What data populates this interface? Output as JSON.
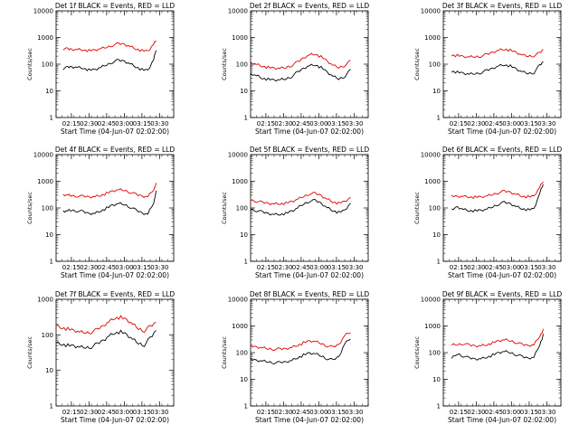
{
  "figure": {
    "panel_title_template": "Det {n}f BLACK = Events, RED = LLD",
    "xlabel": "Start Time (04-Jun-07 02:02:00)",
    "ylabel": "Counts/sec"
  },
  "chart_data": [
    {
      "panel": 1,
      "type": "line",
      "title": "Det 1f BLACK = Events, RED = LLD",
      "xlabel": "Start Time (04-Jun-07 02:02:00)",
      "ylabel": "Counts/sec",
      "ylog": true,
      "ylim": [
        1,
        10000
      ],
      "xlim": [
        "02:02",
        "03:42"
      ],
      "x_ticks": [
        "02:15",
        "02:30",
        "02:45",
        "03:00",
        "03:15",
        "03:30"
      ],
      "y_ticks": [
        "1",
        "10",
        "100",
        "1000",
        "10000"
      ],
      "x": [
        "02:08",
        "02:12",
        "02:15",
        "02:20",
        "02:25",
        "02:30",
        "02:35",
        "02:40",
        "02:45",
        "02:50",
        "02:55",
        "03:00",
        "03:05",
        "03:10",
        "03:15",
        "03:20",
        "03:25",
        "03:27"
      ],
      "series": [
        {
          "name": "LLD",
          "color": "#e00000",
          "values": [
            380,
            370,
            360,
            360,
            350,
            320,
            330,
            380,
            430,
            510,
            580,
            560,
            470,
            380,
            320,
            300,
            560,
            800
          ]
        },
        {
          "name": "Events",
          "color": "#000000",
          "values": [
            70,
            75,
            80,
            78,
            72,
            60,
            62,
            75,
            95,
            120,
            140,
            130,
            105,
            80,
            62,
            58,
            150,
            350
          ]
        }
      ],
      "grid": false
    },
    {
      "panel": 2,
      "type": "line",
      "title": "Det 2f BLACK = Events, RED = LLD",
      "xlabel": "Start Time (04-Jun-07 02:02:00)",
      "ylabel": "Counts/sec",
      "ylog": true,
      "ylim": [
        1,
        10000
      ],
      "xlim": [
        "02:02",
        "03:42"
      ],
      "x_ticks": [
        "02:15",
        "02:30",
        "02:45",
        "03:00",
        "03:15",
        "03:30"
      ],
      "y_ticks": [
        "1",
        "10",
        "100",
        "1000",
        "10000"
      ],
      "x": [
        "02:02",
        "02:07",
        "02:12",
        "02:17",
        "02:22",
        "02:27",
        "02:32",
        "02:37",
        "02:42",
        "02:47",
        "02:52",
        "02:57",
        "03:02",
        "03:07",
        "03:12",
        "03:17",
        "03:22",
        "03:27"
      ],
      "series": [
        {
          "name": "LLD",
          "color": "#e00000",
          "values": [
            120,
            100,
            85,
            75,
            70,
            70,
            75,
            90,
            120,
            170,
            230,
            240,
            190,
            130,
            90,
            75,
            90,
            130
          ]
        },
        {
          "name": "Events",
          "color": "#000000",
          "values": [
            45,
            38,
            30,
            27,
            25,
            26,
            28,
            35,
            50,
            70,
            90,
            95,
            75,
            50,
            35,
            28,
            35,
            60
          ]
        }
      ],
      "grid": false
    },
    {
      "panel": 3,
      "type": "line",
      "title": "Det 3f BLACK = Events, RED = LLD",
      "xlabel": "Start Time (04-Jun-07 02:02:00)",
      "ylabel": "Counts/sec",
      "ylog": true,
      "ylim": [
        1,
        10000
      ],
      "xlim": [
        "02:02",
        "03:42"
      ],
      "x_ticks": [
        "02:15",
        "02:30",
        "02:45",
        "03:00",
        "03:15",
        "03:30"
      ],
      "y_ticks": [
        "1",
        "10",
        "100",
        "1000",
        "10000"
      ],
      "x": [
        "02:09",
        "02:14",
        "02:19",
        "02:24",
        "02:29",
        "02:34",
        "02:39",
        "02:44",
        "02:49",
        "02:54",
        "02:59",
        "03:04",
        "03:09",
        "03:14",
        "03:19",
        "03:24",
        "03:27"
      ],
      "series": [
        {
          "name": "LLD",
          "color": "#e00000",
          "values": [
            220,
            210,
            190,
            185,
            190,
            200,
            230,
            280,
            340,
            370,
            330,
            270,
            220,
            200,
            210,
            260,
            350
          ]
        },
        {
          "name": "Events",
          "color": "#000000",
          "values": [
            55,
            50,
            45,
            42,
            44,
            48,
            58,
            70,
            88,
            95,
            85,
            65,
            52,
            45,
            48,
            90,
            120
          ]
        }
      ],
      "grid": false
    },
    {
      "panel": 4,
      "type": "line",
      "title": "Det 4f BLACK = Events, RED = LLD",
      "xlabel": "Start Time (04-Jun-07 02:02:00)",
      "ylabel": "Counts/sec",
      "ylog": true,
      "ylim": [
        1,
        10000
      ],
      "xlim": [
        "02:02",
        "03:42"
      ],
      "x_ticks": [
        "02:15",
        "02:30",
        "02:45",
        "03:00",
        "03:15",
        "03:30"
      ],
      "y_ticks": [
        "1",
        "10",
        "100",
        "1000",
        "10000"
      ],
      "x": [
        "02:08",
        "02:12",
        "02:15",
        "02:20",
        "02:25",
        "02:30",
        "02:35",
        "02:40",
        "02:45",
        "02:50",
        "02:55",
        "03:00",
        "03:05",
        "03:10",
        "03:15",
        "03:20",
        "03:25",
        "03:27"
      ],
      "series": [
        {
          "name": "LLD",
          "color": "#e00000",
          "values": [
            310,
            300,
            290,
            280,
            270,
            260,
            270,
            300,
            350,
            420,
            480,
            460,
            390,
            320,
            280,
            270,
            500,
            780
          ]
        },
        {
          "name": "Events",
          "color": "#000000",
          "values": [
            75,
            78,
            82,
            78,
            72,
            62,
            64,
            78,
            98,
            125,
            145,
            135,
            108,
            82,
            65,
            60,
            160,
            400
          ]
        }
      ],
      "grid": false
    },
    {
      "panel": 5,
      "type": "line",
      "title": "Det 5f BLACK = Events, RED = LLD",
      "xlabel": "Start Time (04-Jun-07 02:02:00)",
      "ylabel": "Counts/sec",
      "ylog": true,
      "ylim": [
        1,
        10000
      ],
      "xlim": [
        "02:02",
        "03:42"
      ],
      "x_ticks": [
        "02:15",
        "02:30",
        "02:45",
        "03:00",
        "03:15",
        "03:30"
      ],
      "y_ticks": [
        "1",
        "10",
        "100",
        "1000",
        "10000"
      ],
      "x": [
        "02:02",
        "02:07",
        "02:12",
        "02:17",
        "02:22",
        "02:27",
        "02:32",
        "02:37",
        "02:42",
        "02:47",
        "02:52",
        "02:57",
        "03:02",
        "03:07",
        "03:12",
        "03:17",
        "03:22",
        "03:27"
      ],
      "series": [
        {
          "name": "LLD",
          "color": "#e00000",
          "values": [
            200,
            180,
            160,
            150,
            145,
            145,
            150,
            170,
            210,
            270,
            340,
            350,
            290,
            220,
            170,
            150,
            170,
            250
          ]
        },
        {
          "name": "Events",
          "color": "#000000",
          "values": [
            90,
            80,
            70,
            62,
            58,
            58,
            62,
            75,
            100,
            140,
            180,
            190,
            150,
            105,
            80,
            68,
            80,
            150
          ]
        }
      ],
      "grid": false
    },
    {
      "panel": 6,
      "type": "line",
      "title": "Det 6f BLACK = Events, RED = LLD",
      "xlabel": "Start Time (04-Jun-07 02:02:00)",
      "ylabel": "Counts/sec",
      "ylog": true,
      "ylim": [
        1,
        10000
      ],
      "xlim": [
        "02:02",
        "03:42"
      ],
      "x_ticks": [
        "02:15",
        "02:30",
        "02:45",
        "03:00",
        "03:15",
        "03:30"
      ],
      "y_ticks": [
        "1",
        "10",
        "100",
        "1000",
        "10000"
      ],
      "x": [
        "02:09",
        "02:14",
        "02:19",
        "02:24",
        "02:29",
        "02:34",
        "02:39",
        "02:44",
        "02:49",
        "02:54",
        "02:59",
        "03:04",
        "03:09",
        "03:14",
        "03:19",
        "03:24",
        "03:27"
      ],
      "series": [
        {
          "name": "LLD",
          "color": "#e00000",
          "values": [
            280,
            270,
            280,
            260,
            250,
            255,
            280,
            320,
            380,
            420,
            390,
            330,
            280,
            260,
            270,
            600,
            1000
          ]
        },
        {
          "name": "Events",
          "color": "#000000",
          "values": [
            85,
            110,
            90,
            80,
            78,
            80,
            90,
            110,
            140,
            160,
            145,
            115,
            95,
            85,
            90,
            350,
            800
          ]
        }
      ],
      "grid": false
    },
    {
      "panel": 7,
      "type": "line",
      "title": "Det 7f BLACK = Events, RED = LLD",
      "xlabel": "Start Time (04-Jun-07 02:02:00)",
      "ylabel": "Counts/sec",
      "ylog": true,
      "ylim": [
        1,
        1000
      ],
      "xlim": [
        "02:02",
        "03:42"
      ],
      "x_ticks": [
        "02:15",
        "02:30",
        "02:45",
        "03:00",
        "03:15",
        "03:30"
      ],
      "y_ticks": [
        "1",
        "10",
        "100",
        "1000"
      ],
      "x": [
        "02:02",
        "02:07",
        "02:12",
        "02:17",
        "02:22",
        "02:27",
        "02:32",
        "02:37",
        "02:42",
        "02:47",
        "02:52",
        "02:57",
        "03:02",
        "03:07",
        "03:12",
        "03:17",
        "03:22",
        "03:27"
      ],
      "series": [
        {
          "name": "LLD",
          "color": "#e00000",
          "values": [
            180,
            160,
            145,
            130,
            120,
            115,
            120,
            140,
            180,
            240,
            300,
            310,
            260,
            200,
            150,
            130,
            170,
            220
          ]
        },
        {
          "name": "Events",
          "color": "#000000",
          "values": [
            60,
            55,
            50,
            48,
            45,
            44,
            46,
            55,
            70,
            95,
            115,
            120,
            100,
            75,
            58,
            52,
            80,
            130
          ]
        }
      ],
      "grid": false
    },
    {
      "panel": 8,
      "type": "line",
      "title": "Det 8f BLACK = Events, RED = LLD",
      "xlabel": "Start Time (04-Jun-07 02:02:00)",
      "ylabel": "Counts/sec",
      "ylog": true,
      "ylim": [
        1,
        10000
      ],
      "xlim": [
        "02:02",
        "03:42"
      ],
      "x_ticks": [
        "02:15",
        "02:30",
        "02:45",
        "03:00",
        "03:15",
        "03:30"
      ],
      "y_ticks": [
        "1",
        "10",
        "100",
        "1000",
        "10000"
      ],
      "x": [
        "02:02",
        "02:07",
        "02:12",
        "02:17",
        "02:22",
        "02:27",
        "02:32",
        "02:37",
        "02:42",
        "02:47",
        "02:52",
        "02:57",
        "03:02",
        "03:07",
        "03:12",
        "03:17",
        "03:22",
        "03:27"
      ],
      "series": [
        {
          "name": "LLD",
          "color": "#e00000",
          "values": [
            170,
            160,
            150,
            140,
            135,
            135,
            140,
            160,
            190,
            230,
            270,
            260,
            220,
            180,
            160,
            200,
            450,
            600
          ]
        },
        {
          "name": "Events",
          "color": "#000000",
          "values": [
            55,
            50,
            48,
            45,
            42,
            42,
            45,
            52,
            65,
            80,
            95,
            90,
            75,
            60,
            52,
            70,
            220,
            350
          ]
        }
      ],
      "grid": false
    },
    {
      "panel": 9,
      "type": "line",
      "title": "Det 9f BLACK = Events, RED = LLD",
      "xlabel": "Start Time (04-Jun-07 02:02:00)",
      "ylabel": "Counts/sec",
      "ylog": true,
      "ylim": [
        1,
        10000
      ],
      "xlim": [
        "02:02",
        "03:42"
      ],
      "x_ticks": [
        "02:15",
        "02:30",
        "02:45",
        "03:00",
        "03:15",
        "03:30"
      ],
      "y_ticks": [
        "1",
        "10",
        "100",
        "1000",
        "10000"
      ],
      "x": [
        "02:09",
        "02:14",
        "02:19",
        "02:24",
        "02:29",
        "02:34",
        "02:39",
        "02:44",
        "02:49",
        "02:54",
        "02:59",
        "03:04",
        "03:09",
        "03:14",
        "03:19",
        "03:24",
        "03:27"
      ],
      "series": [
        {
          "name": "LLD",
          "color": "#e00000",
          "values": [
            190,
            200,
            220,
            190,
            180,
            185,
            200,
            230,
            270,
            300,
            280,
            240,
            200,
            185,
            200,
            420,
            700
          ]
        },
        {
          "name": "Events",
          "color": "#000000",
          "values": [
            60,
            90,
            75,
            62,
            58,
            60,
            68,
            80,
            98,
            110,
            100,
            85,
            70,
            62,
            68,
            200,
            450
          ]
        }
      ],
      "grid": false
    }
  ]
}
